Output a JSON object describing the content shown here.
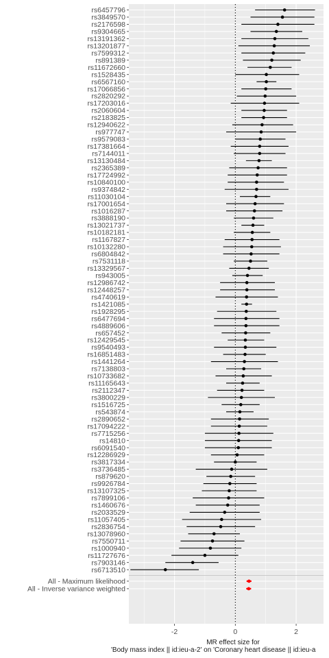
{
  "chart_data": {
    "type": "forest",
    "xlabel_lines": [
      "MR effect size for",
      "'Body mass index || id:ieu-a-2' on 'Coronary heart disease || id:ieu-a"
    ],
    "xlim": [
      -3.5,
      2.9
    ],
    "x_ticks": [
      -2,
      0,
      2
    ],
    "x_tick_labels": [
      "-2",
      "0",
      "2"
    ],
    "reference_line": 0,
    "grid": true,
    "background": "#ebebeb",
    "gridline_color": "#ffffff",
    "point_color": "#000000",
    "summary_color": "#ff0000",
    "snps": [
      {
        "label": "rs6457796",
        "est": 1.62,
        "lo": 0.65,
        "hi": 2.62
      },
      {
        "label": "rs3849570",
        "est": 1.55,
        "lo": 0.5,
        "hi": 2.6
      },
      {
        "label": "rs2176598",
        "est": 1.4,
        "lo": 0.2,
        "hi": 2.6
      },
      {
        "label": "rs9304665",
        "est": 1.35,
        "lo": 0.5,
        "hi": 2.2
      },
      {
        "label": "rs13191362",
        "est": 1.3,
        "lo": 0.2,
        "hi": 2.4
      },
      {
        "label": "rs13201877",
        "est": 1.28,
        "lo": 0.1,
        "hi": 2.45
      },
      {
        "label": "rs7599312",
        "est": 1.25,
        "lo": 0.2,
        "hi": 2.3
      },
      {
        "label": "rs891389",
        "est": 1.2,
        "lo": 0.25,
        "hi": 2.15
      },
      {
        "label": "rs11672660",
        "est": 1.15,
        "lo": 0.4,
        "hi": 1.85
      },
      {
        "label": "rs1528435",
        "est": 1.02,
        "lo": 0.0,
        "hi": 2.1
      },
      {
        "label": "rs6567160",
        "est": 1.02,
        "lo": 0.7,
        "hi": 1.35
      },
      {
        "label": "rs17066856",
        "est": 1.0,
        "lo": 0.2,
        "hi": 1.85
      },
      {
        "label": "rs2820292",
        "est": 0.98,
        "lo": 0.05,
        "hi": 2.0
      },
      {
        "label": "rs17203016",
        "est": 0.96,
        "lo": -0.15,
        "hi": 2.1
      },
      {
        "label": "rs2060604",
        "est": 0.95,
        "lo": 0.2,
        "hi": 1.7
      },
      {
        "label": "rs2183825",
        "est": 0.93,
        "lo": 0.2,
        "hi": 1.7
      },
      {
        "label": "rs12940622",
        "est": 0.88,
        "lo": -0.1,
        "hi": 1.9
      },
      {
        "label": "rs977747",
        "est": 0.85,
        "lo": -0.3,
        "hi": 2.0
      },
      {
        "label": "rs9579083",
        "est": 0.82,
        "lo": 0.0,
        "hi": 1.65
      },
      {
        "label": "rs17381664",
        "est": 0.8,
        "lo": -0.15,
        "hi": 1.75
      },
      {
        "label": "rs7144011",
        "est": 0.8,
        "lo": -0.05,
        "hi": 1.65
      },
      {
        "label": "rs13130484",
        "est": 0.78,
        "lo": 0.35,
        "hi": 1.2
      },
      {
        "label": "rs2365389",
        "est": 0.75,
        "lo": -0.2,
        "hi": 1.7
      },
      {
        "label": "rs17724992",
        "est": 0.72,
        "lo": -0.25,
        "hi": 1.7
      },
      {
        "label": "rs10840100",
        "est": 0.7,
        "lo": -0.25,
        "hi": 1.6
      },
      {
        "label": "rs9374842",
        "est": 0.7,
        "lo": -0.35,
        "hi": 1.75
      },
      {
        "label": "rs11030104",
        "est": 0.68,
        "lo": 0.15,
        "hi": 1.15
      },
      {
        "label": "rs17001654",
        "est": 0.65,
        "lo": -0.3,
        "hi": 1.6
      },
      {
        "label": "rs1016287",
        "est": 0.63,
        "lo": -0.3,
        "hi": 1.55
      },
      {
        "label": "rs3888190",
        "est": 0.6,
        "lo": -0.05,
        "hi": 1.25
      },
      {
        "label": "rs13021737",
        "est": 0.58,
        "lo": 0.2,
        "hi": 0.95
      },
      {
        "label": "rs10182181",
        "est": 0.56,
        "lo": -0.05,
        "hi": 1.15
      },
      {
        "label": "rs1167827",
        "est": 0.55,
        "lo": -0.35,
        "hi": 1.45
      },
      {
        "label": "rs10132280",
        "est": 0.54,
        "lo": -0.4,
        "hi": 1.5
      },
      {
        "label": "rs6804842",
        "est": 0.52,
        "lo": -0.4,
        "hi": 1.45
      },
      {
        "label": "rs7531118",
        "est": 0.5,
        "lo": -0.05,
        "hi": 1.05
      },
      {
        "label": "rs13329567",
        "est": 0.45,
        "lo": -0.2,
        "hi": 1.1
      },
      {
        "label": "rs943005",
        "est": 0.4,
        "lo": -0.1,
        "hi": 0.9
      },
      {
        "label": "rs12986742",
        "est": 0.38,
        "lo": -0.5,
        "hi": 1.3
      },
      {
        "label": "rs12448257",
        "est": 0.38,
        "lo": -0.5,
        "hi": 1.3
      },
      {
        "label": "rs4740619",
        "est": 0.37,
        "lo": -0.65,
        "hi": 1.4
      },
      {
        "label": "rs1421085",
        "est": 0.37,
        "lo": 0.2,
        "hi": 0.55
      },
      {
        "label": "rs1928295",
        "est": 0.36,
        "lo": -0.6,
        "hi": 1.35
      },
      {
        "label": "rs6477694",
        "est": 0.35,
        "lo": -0.7,
        "hi": 1.45
      },
      {
        "label": "rs4889606",
        "est": 0.35,
        "lo": -0.7,
        "hi": 1.45
      },
      {
        "label": "rs657452",
        "est": 0.34,
        "lo": -0.45,
        "hi": 1.15
      },
      {
        "label": "rs12429545",
        "est": 0.33,
        "lo": -0.25,
        "hi": 0.95
      },
      {
        "label": "rs9540493",
        "est": 0.33,
        "lo": -0.7,
        "hi": 1.35
      },
      {
        "label": "rs16851483",
        "est": 0.32,
        "lo": -0.4,
        "hi": 1.0
      },
      {
        "label": "rs1441264",
        "est": 0.3,
        "lo": -0.8,
        "hi": 1.4
      },
      {
        "label": "rs7138803",
        "est": 0.28,
        "lo": -0.3,
        "hi": 0.85
      },
      {
        "label": "rs10733682",
        "est": 0.26,
        "lo": -0.65,
        "hi": 1.2
      },
      {
        "label": "rs11165643",
        "est": 0.24,
        "lo": -0.3,
        "hi": 0.8
      },
      {
        "label": "rs2112347",
        "est": 0.22,
        "lo": -0.6,
        "hi": 0.95
      },
      {
        "label": "rs3800229",
        "est": 0.2,
        "lo": -0.9,
        "hi": 1.3
      },
      {
        "label": "rs1516725",
        "est": 0.18,
        "lo": -0.45,
        "hi": 0.8
      },
      {
        "label": "rs543874",
        "est": 0.15,
        "lo": -0.3,
        "hi": 0.6
      },
      {
        "label": "rs2890652",
        "est": 0.14,
        "lo": -0.8,
        "hi": 1.1
      },
      {
        "label": "rs17094222",
        "est": 0.13,
        "lo": -0.8,
        "hi": 1.05
      },
      {
        "label": "rs7715256",
        "est": 0.12,
        "lo": -1.0,
        "hi": 1.25
      },
      {
        "label": "rs14810",
        "est": 0.11,
        "lo": -1.0,
        "hi": 1.2
      },
      {
        "label": "rs6091540",
        "est": 0.1,
        "lo": -1.0,
        "hi": 1.2
      },
      {
        "label": "rs12286929",
        "est": 0.06,
        "lo": -0.8,
        "hi": 0.95
      },
      {
        "label": "rs3817334",
        "est": 0.0,
        "lo": -0.7,
        "hi": 0.7
      },
      {
        "label": "rs3736485",
        "est": -0.12,
        "lo": -1.3,
        "hi": 1.05
      },
      {
        "label": "rs879620",
        "est": -0.15,
        "lo": -0.95,
        "hi": 0.65
      },
      {
        "label": "rs9926784",
        "est": -0.18,
        "lo": -1.05,
        "hi": 0.7
      },
      {
        "label": "rs13107325",
        "est": -0.2,
        "lo": -1.1,
        "hi": 0.7
      },
      {
        "label": "rs7899106",
        "est": -0.22,
        "lo": -1.4,
        "hi": 0.95
      },
      {
        "label": "rs1460676",
        "est": -0.25,
        "lo": -1.3,
        "hi": 0.8
      },
      {
        "label": "rs2033529",
        "est": -0.35,
        "lo": -1.5,
        "hi": 0.8
      },
      {
        "label": "rs11057405",
        "est": -0.45,
        "lo": -1.75,
        "hi": 0.85
      },
      {
        "label": "rs2836754",
        "est": -0.48,
        "lo": -1.6,
        "hi": 0.65
      },
      {
        "label": "rs13078960",
        "est": -0.7,
        "lo": -1.55,
        "hi": 0.15
      },
      {
        "label": "rs7550711",
        "est": -0.75,
        "lo": -1.8,
        "hi": 0.3
      },
      {
        "label": "rs1000940",
        "est": -0.82,
        "lo": -1.85,
        "hi": 0.2
      },
      {
        "label": "rs11727676",
        "est": -1.0,
        "lo": -2.1,
        "hi": 0.1
      },
      {
        "label": "rs7903146",
        "est": -1.4,
        "lo": -2.3,
        "hi": -0.55
      },
      {
        "label": "rs6713510",
        "est": -2.3,
        "lo": -3.45,
        "hi": -1.2
      }
    ],
    "summaries": [
      {
        "label": "All - Maximum likelihood",
        "est": 0.45,
        "lo": 0.37,
        "hi": 0.53
      },
      {
        "label": "All - Inverse variance weighted",
        "est": 0.44,
        "lo": 0.36,
        "hi": 0.52
      }
    ]
  }
}
